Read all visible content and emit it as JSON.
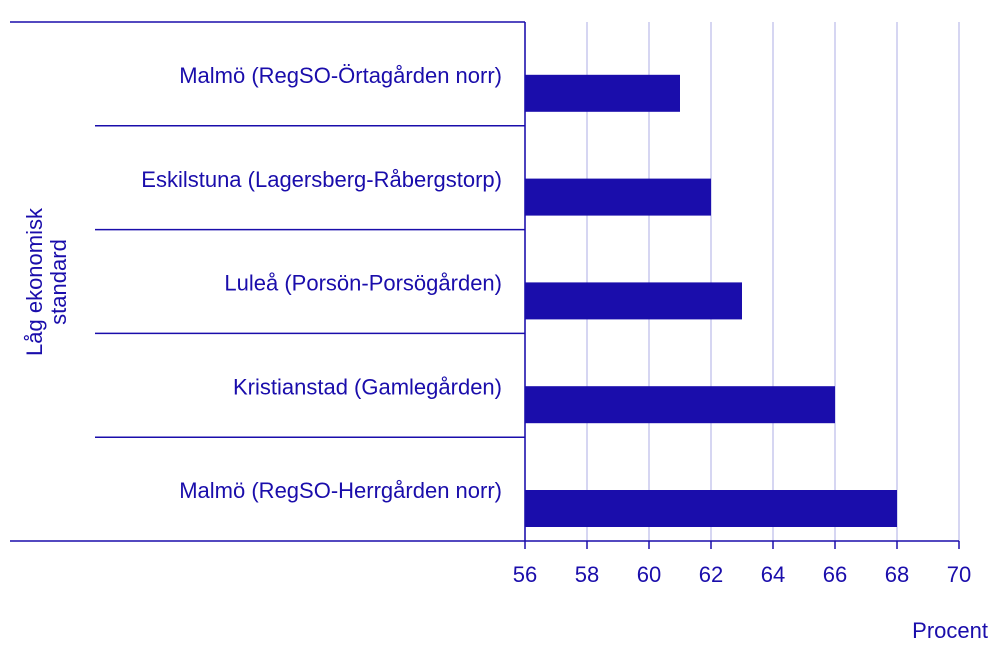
{
  "chart_data": {
    "type": "bar",
    "orientation": "horizontal",
    "group_label": "Låg ekonomisk standard",
    "categories": [
      "Malmö (RegSO-Örtagården norr)",
      "Eskilstuna (Lagersberg-Råbergstorp)",
      "Luleå (Porsön-Porsögården)",
      "Kristianstad (Gamlegården)",
      "Malmö (RegSO-Herrgården norr)"
    ],
    "values": [
      61,
      62,
      63,
      66,
      68
    ],
    "xlabel": "Procent",
    "xlim": [
      56,
      70
    ],
    "xticks": [
      "56",
      "58",
      "60",
      "62",
      "64",
      "66",
      "68",
      "70"
    ],
    "grid": true,
    "colors": {
      "bar": "#1a0dab",
      "text": "#1a0dab",
      "grid": "#c8c8ee",
      "axis": "#1a0dab"
    }
  }
}
